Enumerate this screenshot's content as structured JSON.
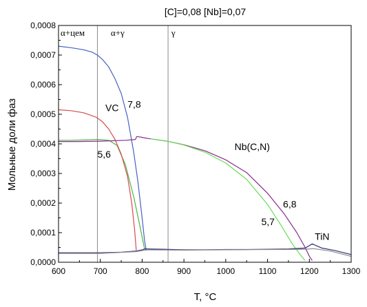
{
  "chart_data": {
    "type": "line",
    "title": "[C]=0,08 [Nb]=0,07",
    "xlabel": "T, °C",
    "ylabel": "Мольные доли фаз",
    "xlim": [
      600,
      1300
    ],
    "ylim": [
      0,
      0.0008
    ],
    "x_ticks": [
      600,
      700,
      800,
      900,
      1000,
      1100,
      1200,
      1300
    ],
    "y_ticks": [
      0,
      0.0001,
      0.0002,
      0.0003,
      0.0004,
      0.0005,
      0.0006,
      0.0007,
      0.0008
    ],
    "y_tick_labels": [
      "0,0000",
      "0,0001",
      "0,0002",
      "0,0003",
      "0,0004",
      "0,0005",
      "0,0006",
      "0,0007",
      "0,0008"
    ],
    "x_tick_labels": [
      "600",
      "700",
      "800",
      "900",
      "1000",
      "1100",
      "1200",
      "1300"
    ],
    "grid": false,
    "vertical_lines": [
      {
        "x": 693,
        "color": "#8a8a8a"
      },
      {
        "x": 862,
        "color": "#8a8a8a"
      }
    ],
    "regions": [
      {
        "label": "α+цем",
        "x": 600
      },
      {
        "label": "α+γ",
        "x": 720
      },
      {
        "label": "γ",
        "x": 865
      }
    ],
    "annotations": [
      {
        "text": "VC",
        "x": 712,
        "y": 0.00051
      },
      {
        "text": "7,8",
        "x": 765,
        "y": 0.000522
      },
      {
        "text": "5,6",
        "x": 693,
        "y": 0.000353
      },
      {
        "text": "Nb(C,N)",
        "x": 1021,
        "y": 0.000379
      },
      {
        "text": "6,8",
        "x": 1137,
        "y": 0.000185
      },
      {
        "text": "5,7",
        "x": 1085,
        "y": 0.000126
      },
      {
        "text": "TiN",
        "x": 1213,
        "y": 7.55e-05
      }
    ],
    "series": [
      {
        "color": "#4a5fc0",
        "x": [
          600,
          630,
          660,
          680,
          693,
          705,
          720,
          735,
          750,
          765,
          780,
          790,
          800,
          806,
          810
        ],
        "y": [
          0.00073,
          0.000725,
          0.000718,
          0.00071,
          0.0007,
          0.000685,
          0.00066,
          0.00062,
          0.00057,
          0.00049,
          0.00037,
          0.00027,
          0.00015,
          7e-05,
          4e-05
        ]
      },
      {
        "color": "#4ab44a",
        "x": [
          600,
          630,
          660,
          693,
          720,
          740,
          760,
          780,
          795,
          805,
          810
        ],
        "y": [
          0.000412,
          0.000412,
          0.000413,
          0.000415,
          0.000412,
          0.000395,
          0.00033,
          0.00022,
          0.00012,
          5e-05,
          4e-05
        ]
      },
      {
        "color": "#d84a4a",
        "x": [
          600,
          630,
          660,
          690,
          705,
          720,
          735,
          750,
          765,
          775,
          782,
          786
        ],
        "y": [
          0.000515,
          0.000512,
          0.000505,
          0.00049,
          0.000475,
          0.00045,
          0.000415,
          0.000365,
          0.00029,
          0.0002,
          0.00011,
          4e-05
        ]
      },
      {
        "color": "#8a2a8a",
        "x": [
          600,
          650,
          700,
          760,
          784,
          787,
          800,
          806,
          820,
          860,
          900,
          950,
          1000,
          1050,
          1100,
          1140,
          1170,
          1190,
          1200,
          1207
        ],
        "y": [
          0.000408,
          0.000408,
          0.000409,
          0.000412,
          0.000415,
          0.000425,
          0.000422,
          0.00042,
          0.000417,
          0.000409,
          0.000397,
          0.000377,
          0.000346,
          0.000303,
          0.000233,
          0.000163,
          0.0001,
          5e-05,
          2e-05,
          5.5e-06
        ]
      },
      {
        "color": "#66dd55",
        "x": [
          820,
          860,
          900,
          950,
          1000,
          1050,
          1100,
          1130,
          1160,
          1180,
          1190
        ],
        "y": [
          0.000417,
          0.000409,
          0.000396,
          0.000372,
          0.000335,
          0.00028,
          0.000195,
          0.00013,
          6e-05,
          2.2e-05,
          5.5e-06
        ]
      },
      {
        "color": "#2e2e7a",
        "x": [
          600,
          650,
          700,
          750,
          786,
          800,
          806,
          850,
          900,
          950,
          1000,
          1050,
          1100,
          1150,
          1190,
          1207,
          1230,
          1260,
          1300
        ],
        "y": [
          3.2e-05,
          3.2e-05,
          3.2e-05,
          3.4e-05,
          3.8e-05,
          4.2e-05,
          4.5e-05,
          4.4e-05,
          4.2e-05,
          4.2e-05,
          4.3e-05,
          4.3e-05,
          4.4e-05,
          4.5e-05,
          4.8e-05,
          6.2e-05,
          4.8e-05,
          4e-05,
          2.6e-05
        ]
      },
      {
        "color": "#8a8a8a",
        "x": [
          600,
          700,
          786,
          810,
          900,
          1000,
          1100,
          1190,
          1210,
          1250,
          1300
        ],
        "y": [
          3e-05,
          3e-05,
          3.6e-05,
          4.2e-05,
          4.1e-05,
          4.2e-05,
          4.3e-05,
          4.4e-05,
          4.6e-05,
          3.8e-05,
          2e-05
        ]
      }
    ]
  }
}
